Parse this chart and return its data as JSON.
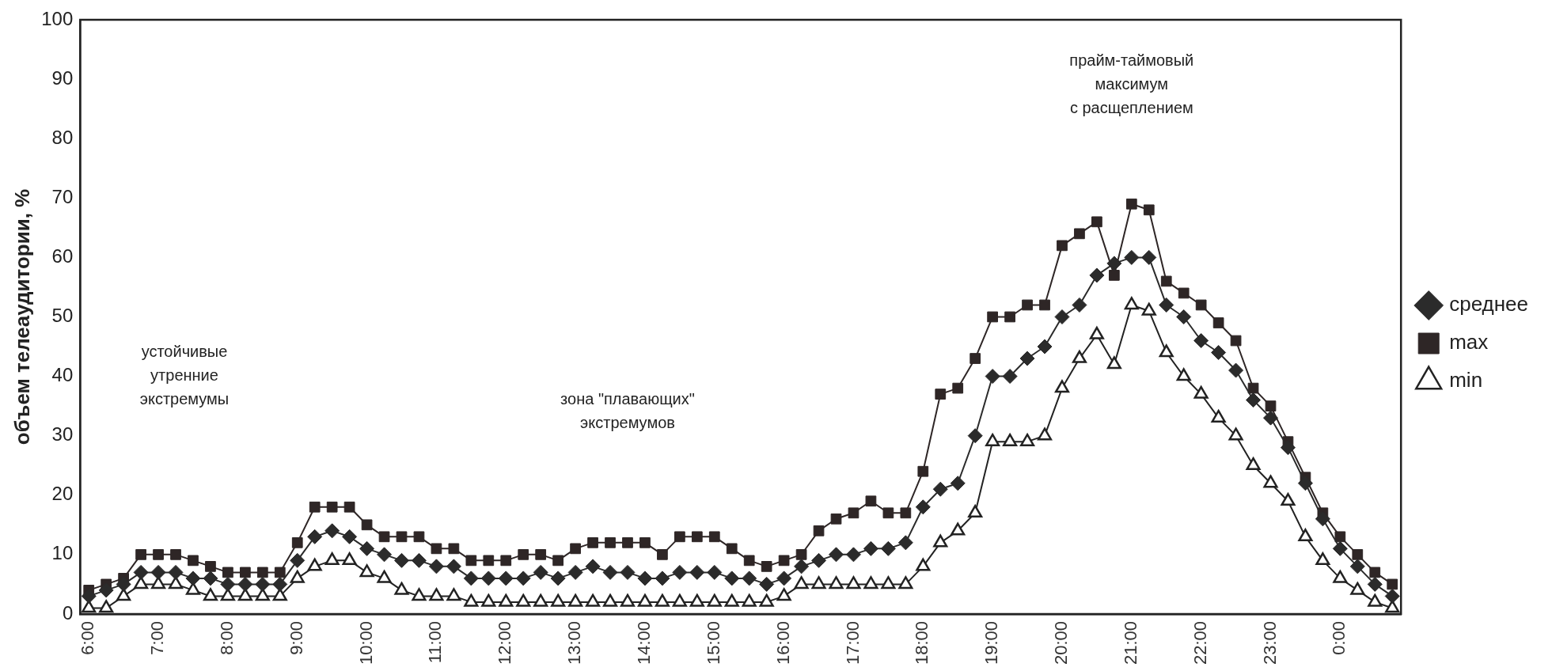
{
  "chart_data": {
    "type": "line",
    "ylabel": "объем телеаудитории, %",
    "categories": [
      "6:00",
      null,
      null,
      null,
      "7:00",
      null,
      null,
      null,
      "8:00",
      null,
      null,
      null,
      "9:00",
      null,
      null,
      null,
      "10:00",
      null,
      null,
      null,
      "11:00",
      null,
      null,
      null,
      "12:00",
      null,
      null,
      null,
      "13:00",
      null,
      null,
      null,
      "14:00",
      null,
      null,
      null,
      "15:00",
      null,
      null,
      null,
      "16:00",
      null,
      null,
      null,
      "17:00",
      null,
      null,
      null,
      "18:00",
      null,
      null,
      null,
      "19:00",
      null,
      null,
      null,
      "20:00",
      null,
      null,
      null,
      "21:00",
      null,
      null,
      null,
      "22:00",
      null,
      null,
      null,
      "23:00",
      null,
      null,
      null,
      "0:00",
      null,
      null,
      null
    ],
    "series": [
      {
        "name": "среднее",
        "color": "#2b2b2b",
        "marker": "diamond",
        "values": [
          3,
          4,
          5,
          7,
          7,
          7,
          6,
          6,
          5,
          5,
          5,
          5,
          9,
          13,
          14,
          13,
          11,
          10,
          9,
          9,
          8,
          8,
          6,
          6,
          6,
          6,
          7,
          6,
          7,
          8,
          7,
          7,
          6,
          6,
          7,
          7,
          7,
          6,
          6,
          5,
          6,
          8,
          9,
          10,
          10,
          11,
          11,
          12,
          18,
          21,
          22,
          30,
          40,
          40,
          43,
          45,
          50,
          52,
          57,
          59,
          60,
          60,
          52,
          50,
          46,
          44,
          41,
          36,
          33,
          28,
          22,
          16,
          11,
          8,
          5,
          3
        ]
      },
      {
        "name": "max",
        "color": "#2e2626",
        "marker": "square",
        "values": [
          4,
          5,
          6,
          10,
          10,
          10,
          9,
          8,
          7,
          7,
          7,
          7,
          12,
          18,
          18,
          18,
          15,
          13,
          13,
          13,
          11,
          11,
          9,
          9,
          9,
          10,
          10,
          9,
          11,
          12,
          12,
          12,
          12,
          10,
          13,
          13,
          13,
          11,
          9,
          8,
          9,
          10,
          14,
          16,
          17,
          19,
          17,
          17,
          24,
          37,
          38,
          43,
          50,
          50,
          52,
          52,
          62,
          64,
          66,
          57,
          69,
          68,
          56,
          54,
          52,
          49,
          46,
          38,
          35,
          29,
          23,
          17,
          13,
          10,
          7,
          5
        ]
      },
      {
        "name": "min",
        "color": "#222222",
        "marker": "triangle",
        "values": [
          1,
          1,
          3,
          5,
          5,
          5,
          4,
          3,
          3,
          3,
          3,
          3,
          6,
          8,
          9,
          9,
          7,
          6,
          4,
          3,
          3,
          3,
          2,
          2,
          2,
          2,
          2,
          2,
          2,
          2,
          2,
          2,
          2,
          2,
          2,
          2,
          2,
          2,
          2,
          2,
          3,
          5,
          5,
          5,
          5,
          5,
          5,
          5,
          8,
          12,
          14,
          17,
          29,
          29,
          29,
          30,
          38,
          43,
          47,
          42,
          52,
          51,
          44,
          40,
          37,
          33,
          30,
          25,
          22,
          19,
          13,
          9,
          6,
          4,
          2,
          1
        ]
      }
    ],
    "ylim": [
      0,
      100
    ],
    "yticks": [
      0,
      10,
      20,
      30,
      40,
      50,
      60,
      70,
      80,
      90,
      100
    ],
    "grid": false,
    "legend": "right",
    "line_style": "solid",
    "annotations": [
      "устойчивые\nутренние\nэкстремумы",
      "зона \"плавающих\"\nэкстремумов",
      "прайм-таймовый\nмаксимум\nс расщеплением"
    ]
  }
}
